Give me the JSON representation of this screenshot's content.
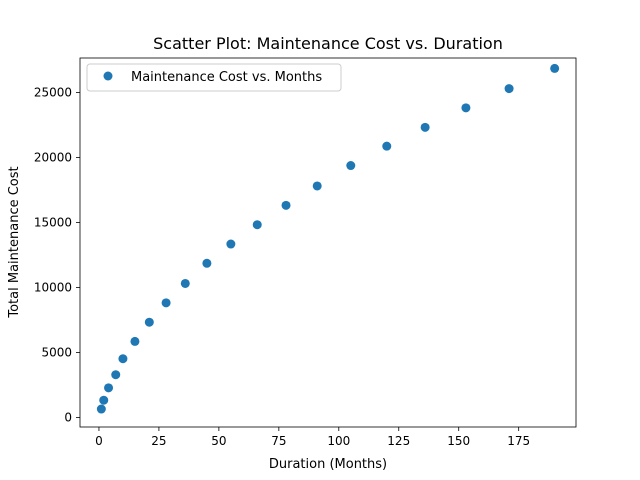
{
  "chart_data": {
    "type": "scatter",
    "title": "Scatter Plot: Maintenance Cost vs. Duration",
    "xlabel": "Duration (Months)",
    "ylabel": "Total Maintenance Cost",
    "xlim": [
      -7.9,
      198.9
    ],
    "ylim": [
      -732,
      27652
    ],
    "xticks": [
      0,
      25,
      50,
      75,
      100,
      125,
      150,
      175
    ],
    "yticks": [
      0,
      5000,
      10000,
      15000,
      20000,
      25000
    ],
    "grid": false,
    "legend_position": "upper-left",
    "series": [
      {
        "name": "Maintenance Cost vs. Months",
        "color": "#1f77b4",
        "marker": "circle",
        "x": [
          1,
          2,
          4,
          7,
          10,
          15,
          21,
          28,
          36,
          45,
          55,
          66,
          78,
          91,
          105,
          120,
          136,
          153,
          171,
          190
        ],
        "y": [
          650,
          1330,
          2280,
          3290,
          4520,
          5850,
          7330,
          8820,
          10310,
          11860,
          13340,
          14830,
          16320,
          17810,
          19380,
          20870,
          22320,
          23820,
          25300,
          26850
        ]
      }
    ]
  }
}
